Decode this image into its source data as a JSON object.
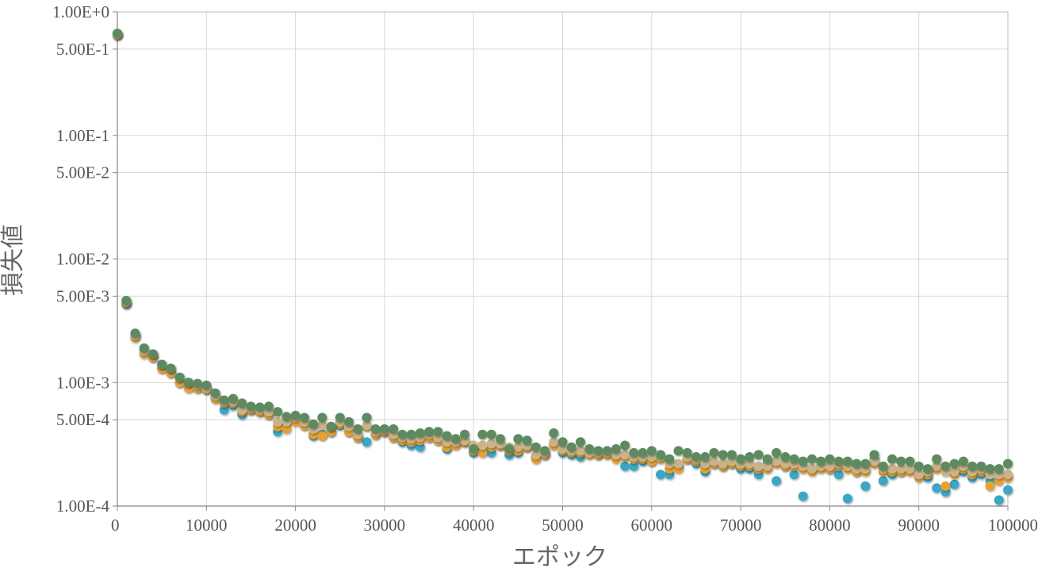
{
  "chart_data": {
    "type": "scatter",
    "title": "",
    "xlabel": "エポック",
    "ylabel": "損失値",
    "xlim": [
      0,
      100000
    ],
    "ylim": [
      0.0001,
      1
    ],
    "yscale": "log",
    "grid": true,
    "legend": "none",
    "x_ticks": [
      "0",
      "10000",
      "20000",
      "30000",
      "40000",
      "50000",
      "60000",
      "70000",
      "80000",
      "90000",
      "100000"
    ],
    "y_ticks": [
      {
        "value": 1,
        "label": "1.00E+0"
      },
      {
        "value": 0.5,
        "label": "5.00E-1"
      },
      {
        "value": 0.1,
        "label": "1.00E-1"
      },
      {
        "value": 0.05,
        "label": "5.00E-2"
      },
      {
        "value": 0.01,
        "label": "1.00E-2"
      },
      {
        "value": 0.005,
        "label": "5.00E-3"
      },
      {
        "value": 0.001,
        "label": "1.00E-3"
      },
      {
        "value": 0.0005,
        "label": "5.00E-4"
      },
      {
        "value": 0.0001,
        "label": "1.00E-4"
      }
    ],
    "x": [
      0,
      1000,
      2000,
      3000,
      4000,
      5000,
      6000,
      7000,
      8000,
      9000,
      10000,
      11000,
      12000,
      13000,
      14000,
      15000,
      16000,
      17000,
      18000,
      19000,
      20000,
      21000,
      22000,
      23000,
      24000,
      25000,
      26000,
      27000,
      28000,
      29000,
      30000,
      31000,
      32000,
      33000,
      34000,
      35000,
      36000,
      37000,
      38000,
      39000,
      40000,
      41000,
      42000,
      43000,
      44000,
      45000,
      46000,
      47000,
      48000,
      49000,
      50000,
      51000,
      52000,
      53000,
      54000,
      55000,
      56000,
      57000,
      58000,
      59000,
      60000,
      61000,
      62000,
      63000,
      64000,
      65000,
      66000,
      67000,
      68000,
      69000,
      70000,
      71000,
      72000,
      73000,
      74000,
      75000,
      76000,
      77000,
      78000,
      79000,
      80000,
      81000,
      82000,
      83000,
      84000,
      85000,
      86000,
      87000,
      88000,
      89000,
      90000,
      91000,
      92000,
      93000,
      94000,
      95000,
      96000,
      97000,
      98000,
      99000,
      100000
    ],
    "series": [
      {
        "color": "#3aa7c4",
        "values": [
          0.65,
          0.0043,
          0.0024,
          0.0018,
          0.0016,
          0.0013,
          0.0012,
          0.001,
          0.00092,
          0.0009,
          0.00088,
          0.00075,
          0.0006,
          0.00065,
          0.00055,
          0.0006,
          0.00058,
          0.00055,
          0.0004,
          0.00047,
          0.0005,
          0.00045,
          0.00037,
          0.00038,
          0.0004,
          0.00045,
          0.0004,
          0.00036,
          0.00033,
          0.00038,
          0.0004,
          0.00036,
          0.00033,
          0.00031,
          0.0003,
          0.00036,
          0.00034,
          0.00029,
          0.00032,
          0.00033,
          0.00027,
          0.00028,
          0.00027,
          0.00031,
          0.00026,
          0.00027,
          0.0003,
          0.00025,
          0.00026,
          0.00032,
          0.00027,
          0.00026,
          0.00025,
          0.00027,
          0.00026,
          0.00027,
          0.00026,
          0.00021,
          0.00021,
          0.00023,
          0.00023,
          0.00018,
          0.00018,
          0.00021,
          0.00024,
          0.00022,
          0.00019,
          0.00022,
          0.00021,
          0.00022,
          0.0002,
          0.0002,
          0.00018,
          0.00022,
          0.00016,
          0.00021,
          0.00018,
          0.00012,
          0.0002,
          0.00021,
          0.0002,
          0.00018,
          0.000115,
          0.00019,
          0.000145,
          0.00024,
          0.00016,
          0.00018,
          0.00019,
          0.0002,
          0.00018,
          0.00017,
          0.00014,
          0.00013,
          0.00015,
          0.00019,
          0.00017,
          0.00018,
          0.00016,
          0.000112,
          0.000135
        ]
      },
      {
        "color": "#e8a030",
        "values": [
          0.65,
          0.0044,
          0.0023,
          0.0017,
          0.0016,
          0.0013,
          0.0012,
          0.001,
          0.0009,
          0.0009,
          0.00088,
          0.00074,
          0.00068,
          0.00068,
          0.00058,
          0.0006,
          0.00058,
          0.00055,
          0.00044,
          0.00042,
          0.00048,
          0.00045,
          0.00038,
          0.00037,
          0.0004,
          0.00046,
          0.0004,
          0.00036,
          0.00044,
          0.00038,
          0.0004,
          0.00036,
          0.00034,
          0.00033,
          0.00034,
          0.00036,
          0.00034,
          0.0003,
          0.00031,
          0.00033,
          0.00028,
          0.00027,
          0.0003,
          0.00031,
          0.00028,
          0.00028,
          0.0003,
          0.00024,
          0.00026,
          0.00031,
          0.00028,
          0.00027,
          0.00027,
          0.00026,
          0.00026,
          0.00026,
          0.00024,
          0.00025,
          0.00024,
          0.00024,
          0.00023,
          0.00024,
          0.0002,
          0.0002,
          0.00024,
          0.00023,
          0.0002,
          0.00022,
          0.00021,
          0.00022,
          0.00021,
          0.00021,
          0.0002,
          0.0002,
          0.00022,
          0.00021,
          0.00021,
          0.0002,
          0.00019,
          0.0002,
          0.0002,
          0.00021,
          0.0002,
          0.00019,
          0.00019,
          0.00022,
          0.00019,
          0.00019,
          0.00019,
          0.00019,
          0.00017,
          0.00018,
          0.0002,
          0.000145,
          0.00018,
          0.0002,
          0.00018,
          0.00019,
          0.000145,
          0.00016,
          0.00017
        ]
      },
      {
        "color": "#c9b48a",
        "values": [
          0.66,
          0.0045,
          0.0024,
          0.0018,
          0.0017,
          0.0014,
          0.0013,
          0.0011,
          0.001,
          0.00095,
          0.0009,
          0.00078,
          0.0007,
          0.0007,
          0.0006,
          0.00062,
          0.0006,
          0.00058,
          0.00048,
          0.00048,
          0.00052,
          0.00048,
          0.00042,
          0.00045,
          0.00044,
          0.00048,
          0.00044,
          0.00038,
          0.00045,
          0.0004,
          0.00041,
          0.00038,
          0.00036,
          0.00035,
          0.00036,
          0.00038,
          0.00036,
          0.00033,
          0.00033,
          0.00034,
          0.00031,
          0.00031,
          0.00032,
          0.00032,
          0.0003,
          0.0003,
          0.00031,
          0.00026,
          0.00027,
          0.00033,
          0.00029,
          0.00028,
          0.00028,
          0.00027,
          0.00027,
          0.00027,
          0.00026,
          0.00026,
          0.00025,
          0.00025,
          0.00025,
          0.00025,
          0.00022,
          0.00022,
          0.00025,
          0.00024,
          0.00022,
          0.00023,
          0.00022,
          0.00023,
          0.00022,
          0.00022,
          0.00021,
          0.00021,
          0.00023,
          0.00022,
          0.00022,
          0.00021,
          0.0002,
          0.00021,
          0.00021,
          0.00022,
          0.00021,
          0.0002,
          0.0002,
          0.00023,
          0.0002,
          0.0002,
          0.0002,
          0.0002,
          0.00018,
          0.00019,
          0.00021,
          0.00019,
          0.00019,
          0.00021,
          0.00019,
          0.0002,
          0.00018,
          0.00018,
          0.00018
        ]
      },
      {
        "color": "#5d8a5f",
        "values": [
          0.67,
          0.0046,
          0.0025,
          0.0019,
          0.0017,
          0.0014,
          0.0013,
          0.0011,
          0.001,
          0.00098,
          0.00095,
          0.00082,
          0.00072,
          0.00074,
          0.00068,
          0.00064,
          0.00063,
          0.00064,
          0.00058,
          0.00053,
          0.00054,
          0.00052,
          0.00046,
          0.00052,
          0.00044,
          0.00052,
          0.00048,
          0.00042,
          0.00052,
          0.00042,
          0.00042,
          0.00042,
          0.00038,
          0.00038,
          0.00039,
          0.0004,
          0.0004,
          0.00037,
          0.00035,
          0.00038,
          0.00029,
          0.00038,
          0.00038,
          0.00035,
          0.00029,
          0.00035,
          0.00034,
          0.0003,
          0.00028,
          0.00039,
          0.00033,
          0.0003,
          0.00033,
          0.00029,
          0.00028,
          0.00028,
          0.00029,
          0.00031,
          0.00027,
          0.00027,
          0.00028,
          0.00026,
          0.00024,
          0.00028,
          0.00027,
          0.00025,
          0.00025,
          0.00027,
          0.00026,
          0.00026,
          0.00024,
          0.00025,
          0.00026,
          0.00024,
          0.00027,
          0.00025,
          0.00024,
          0.00023,
          0.00024,
          0.00023,
          0.00024,
          0.00023,
          0.00023,
          0.00022,
          0.00022,
          0.00026,
          0.00021,
          0.00024,
          0.00023,
          0.00023,
          0.00021,
          0.0002,
          0.00024,
          0.00021,
          0.00022,
          0.00023,
          0.00021,
          0.00021,
          0.0002,
          0.0002,
          0.00022
        ]
      }
    ]
  }
}
